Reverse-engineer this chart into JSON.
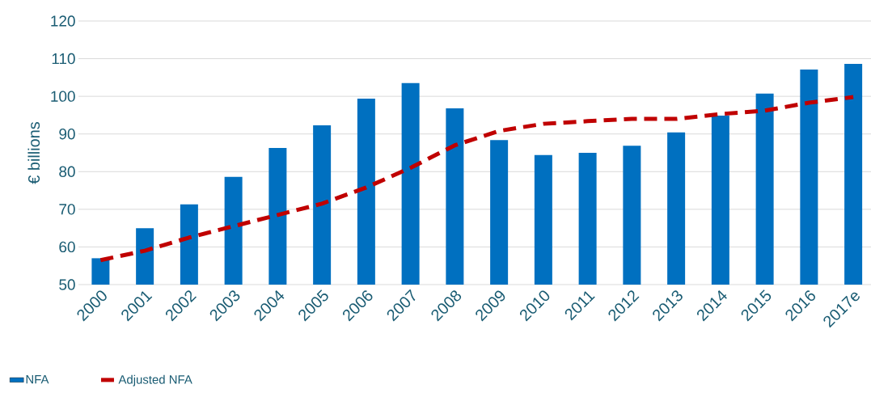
{
  "chart_data": {
    "type": "bar",
    "ylabel": "€ billions",
    "categories": [
      "2000",
      "2001",
      "2002",
      "2003",
      "2004",
      "2005",
      "2006",
      "2007",
      "2008",
      "2009",
      "2010",
      "2011",
      "2012",
      "2013",
      "2014",
      "2015",
      "2016",
      "2017e"
    ],
    "series": [
      {
        "name": "NFA",
        "color": "#0070c0",
        "values": [
          57,
          65,
          71.3,
          78.6,
          86.3,
          92.3,
          99.4,
          103.5,
          96.8,
          88.4,
          84.4,
          85,
          86.9,
          90.4,
          94.9,
          100.7,
          107.1,
          108.6
        ]
      },
      {
        "name": "Adjusted NFA",
        "type": "line",
        "color": "#c00000",
        "line_style": "dashed",
        "values": [
          56.5,
          59,
          62.5,
          65.5,
          68.5,
          71.5,
          75.8,
          81,
          87,
          90.8,
          92.7,
          93.4,
          94,
          94,
          95.3,
          96.2,
          98.3,
          99.8
        ]
      }
    ],
    "ylim": [
      50,
      120
    ],
    "yticks": [
      50,
      60,
      70,
      80,
      90,
      100,
      110,
      120
    ],
    "grid": "y",
    "legend": "bottom left"
  }
}
